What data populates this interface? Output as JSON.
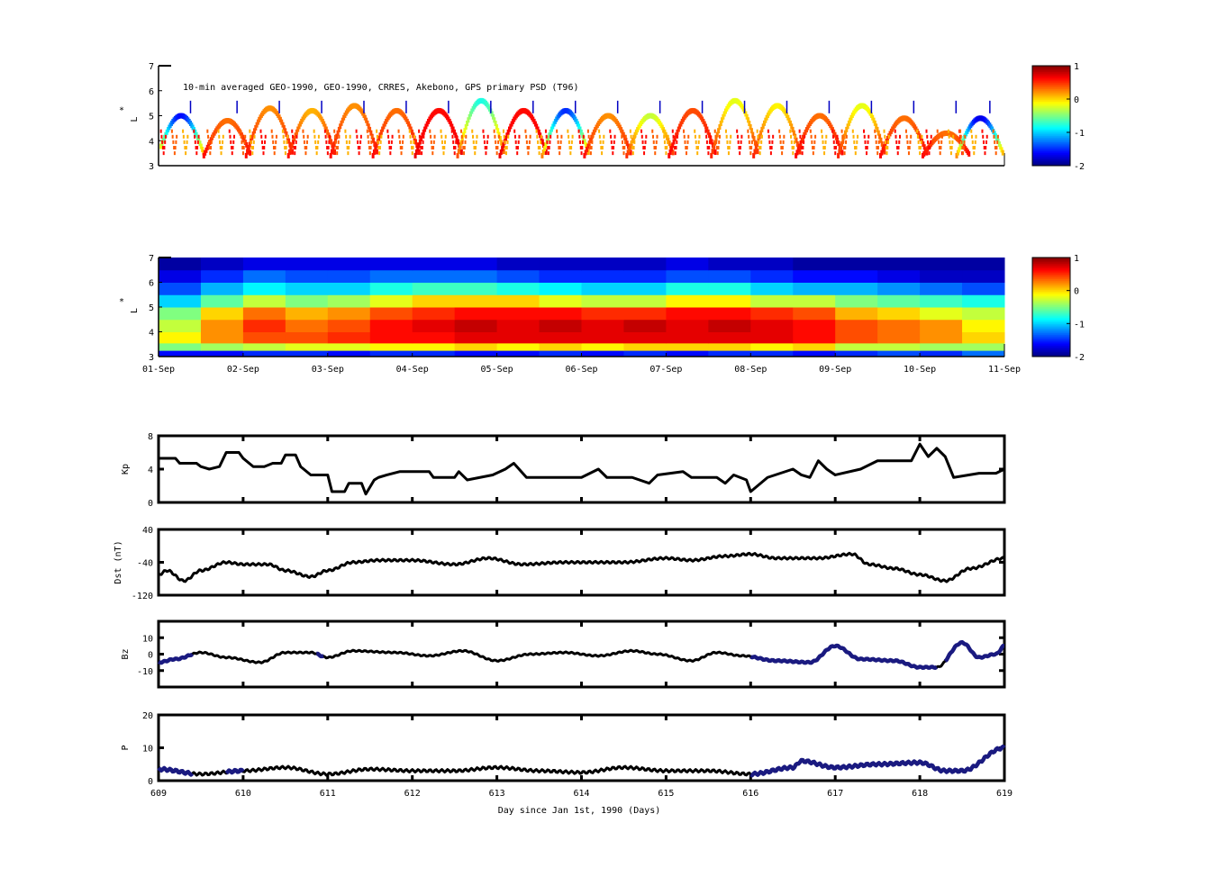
{
  "chart_data": [
    {
      "type": "scatter",
      "panel": "psd-observations",
      "annotation": "10-min averaged GEO-1990, GEO-1990, CRRES, Akebono, GPS  primary PSD (T96)",
      "ylabel": "L*",
      "ylim": [
        3,
        7
      ],
      "yticks": [
        "3",
        "4",
        "5",
        "6",
        "7"
      ],
      "xlim": [
        609,
        619
      ],
      "colorbar": {
        "range": [
          -2,
          1
        ],
        "ticks": [
          "1",
          "0",
          "-1",
          "-2"
        ],
        "colormap": "jet"
      },
      "passes": [
        {
          "day": 609.25,
          "peak_L": 5.0,
          "value": -1.6
        },
        {
          "day": 609.8,
          "peak_L": 4.8,
          "value": 0.3
        },
        {
          "day": 610.3,
          "peak_L": 5.3,
          "value": 0.2
        },
        {
          "day": 610.8,
          "peak_L": 5.2,
          "value": 0.1
        },
        {
          "day": 611.3,
          "peak_L": 5.4,
          "value": 0.2
        },
        {
          "day": 611.8,
          "peak_L": 5.2,
          "value": 0.3
        },
        {
          "day": 612.3,
          "peak_L": 5.2,
          "value": 0.6
        },
        {
          "day": 612.8,
          "peak_L": 5.6,
          "value": -0.8
        },
        {
          "day": 613.3,
          "peak_L": 5.2,
          "value": 0.6
        },
        {
          "day": 613.8,
          "peak_L": 5.2,
          "value": -1.5
        },
        {
          "day": 614.3,
          "peak_L": 5.0,
          "value": 0.2
        },
        {
          "day": 614.8,
          "peak_L": 5.0,
          "value": -0.3
        },
        {
          "day": 615.3,
          "peak_L": 5.2,
          "value": 0.4
        },
        {
          "day": 615.8,
          "peak_L": 5.6,
          "value": -0.2
        },
        {
          "day": 616.3,
          "peak_L": 5.4,
          "value": -0.1
        },
        {
          "day": 616.8,
          "peak_L": 5.0,
          "value": 0.3
        },
        {
          "day": 617.3,
          "peak_L": 5.4,
          "value": -0.2
        },
        {
          "day": 617.8,
          "peak_L": 4.9,
          "value": 0.3
        },
        {
          "day": 618.3,
          "peak_L": 4.3,
          "value": 0.3
        },
        {
          "day": 618.7,
          "peak_L": 4.9,
          "value": -1.7
        }
      ]
    },
    {
      "type": "heatmap",
      "panel": "psd-reanalysis",
      "ylabel": "L*",
      "ylim": [
        3,
        7
      ],
      "yticks": [
        "3",
        "4",
        "5",
        "6",
        "7"
      ],
      "xticklabels": [
        "01-Sep",
        "02-Sep",
        "03-Sep",
        "04-Sep",
        "05-Sep",
        "06-Sep",
        "07-Sep",
        "08-Sep",
        "09-Sep",
        "10-Sep",
        "11-Sep"
      ],
      "colorbar": {
        "range": [
          -2,
          1
        ],
        "ticks": [
          "1",
          "0",
          "-1",
          "-2"
        ],
        "colormap": "jet"
      },
      "L_bins": [
        3.1,
        3.4,
        3.75,
        4.25,
        4.75,
        5.25,
        5.75,
        6.25,
        6.75
      ],
      "time_days": [
        609.0,
        609.5,
        610.0,
        610.5,
        611.0,
        611.5,
        612.0,
        612.5,
        613.0,
        613.5,
        614.0,
        614.5,
        615.0,
        615.5,
        616.0,
        616.5,
        617.0,
        617.5,
        618.0,
        618.5
      ],
      "values": [
        [
          -1.6,
          -1.6,
          -1.5,
          -1.5,
          -1.6,
          -1.5,
          -1.5,
          -1.6,
          -1.6,
          -1.5,
          -1.6,
          -1.5,
          -1.6,
          -1.5,
          -1.5,
          -1.6,
          -1.5,
          -1.4,
          -1.5,
          -1.3
        ],
        [
          -0.5,
          -0.4,
          -0.3,
          -0.2,
          -0.2,
          -0.1,
          -0.1,
          0.0,
          -0.1,
          0.0,
          -0.1,
          0.0,
          0.0,
          0.0,
          -0.1,
          0.0,
          -0.3,
          -0.3,
          -0.4,
          -0.4
        ],
        [
          -0.1,
          0.2,
          0.4,
          0.4,
          0.5,
          0.6,
          0.6,
          0.7,
          0.7,
          0.7,
          0.7,
          0.7,
          0.7,
          0.7,
          0.7,
          0.6,
          0.4,
          0.3,
          0.2,
          0.0
        ],
        [
          -0.3,
          0.2,
          0.5,
          0.3,
          0.4,
          0.6,
          0.7,
          0.8,
          0.7,
          0.8,
          0.7,
          0.8,
          0.7,
          0.8,
          0.7,
          0.6,
          0.4,
          0.3,
          0.2,
          -0.1
        ],
        [
          -0.5,
          0.0,
          0.3,
          0.1,
          0.2,
          0.4,
          0.5,
          0.6,
          0.6,
          0.6,
          0.5,
          0.5,
          0.6,
          0.6,
          0.5,
          0.4,
          0.1,
          0.0,
          -0.2,
          -0.3
        ],
        [
          -1.0,
          -0.6,
          -0.3,
          -0.5,
          -0.4,
          -0.2,
          0.0,
          0.0,
          0.0,
          -0.2,
          -0.3,
          -0.3,
          -0.1,
          -0.1,
          -0.3,
          -0.3,
          -0.5,
          -0.6,
          -0.7,
          -0.8
        ],
        [
          -1.4,
          -1.1,
          -0.9,
          -1.0,
          -1.0,
          -0.8,
          -0.7,
          -0.7,
          -0.8,
          -0.9,
          -1.0,
          -1.0,
          -0.8,
          -0.8,
          -1.0,
          -1.1,
          -1.1,
          -1.2,
          -1.3,
          -1.4
        ],
        [
          -1.7,
          -1.5,
          -1.3,
          -1.4,
          -1.4,
          -1.3,
          -1.3,
          -1.3,
          -1.4,
          -1.5,
          -1.5,
          -1.5,
          -1.4,
          -1.4,
          -1.5,
          -1.6,
          -1.6,
          -1.7,
          -1.8,
          -1.8
        ],
        [
          -1.9,
          -1.8,
          -1.7,
          -1.7,
          -1.7,
          -1.7,
          -1.7,
          -1.7,
          -1.8,
          -1.8,
          -1.8,
          -1.8,
          -1.7,
          -1.8,
          -1.8,
          -1.9,
          -1.9,
          -1.9,
          -1.9,
          -1.9
        ]
      ]
    },
    {
      "type": "line",
      "panel": "kp",
      "ylabel": "Kp",
      "ylim": [
        0,
        8
      ],
      "yticks": [
        "0",
        "4",
        "8"
      ],
      "x": [
        609.0,
        609.2,
        609.25,
        609.45,
        609.5,
        609.6,
        609.72,
        609.8,
        609.95,
        610.0,
        610.12,
        610.25,
        610.35,
        610.45,
        610.5,
        610.62,
        610.68,
        610.8,
        611.0,
        611.05,
        611.2,
        611.25,
        611.4,
        611.45,
        611.55,
        611.6,
        611.7,
        611.85,
        612.2,
        612.25,
        612.5,
        612.55,
        612.65,
        612.8,
        612.95,
        613.1,
        613.2,
        613.35,
        613.7,
        614.0,
        614.2,
        614.3,
        614.6,
        614.8,
        614.9,
        615.2,
        615.3,
        615.6,
        615.7,
        615.8,
        615.95,
        616.0,
        616.2,
        616.5,
        616.6,
        616.7,
        616.8,
        616.9,
        617.0,
        617.3,
        617.5,
        617.9,
        618.0,
        618.1,
        618.2,
        618.3,
        618.4,
        618.7,
        618.9,
        619.0
      ],
      "y": [
        5.3,
        5.3,
        4.7,
        4.7,
        4.3,
        4.0,
        4.3,
        6.0,
        6.0,
        5.3,
        4.3,
        4.3,
        4.7,
        4.7,
        5.7,
        5.7,
        4.3,
        3.3,
        3.3,
        1.3,
        1.3,
        2.3,
        2.3,
        1.0,
        2.7,
        3.0,
        3.3,
        3.7,
        3.7,
        3.0,
        3.0,
        3.7,
        2.7,
        3.0,
        3.3,
        4.0,
        4.7,
        3.0,
        3.0,
        3.0,
        4.0,
        3.0,
        3.0,
        2.3,
        3.3,
        3.7,
        3.0,
        3.0,
        2.3,
        3.3,
        2.7,
        1.3,
        3.0,
        4.0,
        3.3,
        3.0,
        5.0,
        4.0,
        3.3,
        4.0,
        5.0,
        5.0,
        7.0,
        5.5,
        6.5,
        5.5,
        3.0,
        3.5,
        3.5,
        4.0
      ]
    },
    {
      "type": "line",
      "panel": "dst",
      "ylabel": "Dst (nT)",
      "ylim": [
        -120,
        40
      ],
      "yticks": [
        "-120",
        "-40",
        "40"
      ],
      "x": [
        609.0,
        609.1,
        609.3,
        609.5,
        609.8,
        610.0,
        610.3,
        610.5,
        610.8,
        611.0,
        611.3,
        611.6,
        612.0,
        612.5,
        612.9,
        613.3,
        613.8,
        614.5,
        615.0,
        615.3,
        615.7,
        616.0,
        616.3,
        616.8,
        617.2,
        617.4,
        617.7,
        618.0,
        618.3,
        618.6,
        619.0
      ],
      "y": [
        -70,
        -60,
        -85,
        -60,
        -40,
        -45,
        -45,
        -60,
        -75,
        -60,
        -40,
        -35,
        -35,
        -45,
        -30,
        -45,
        -40,
        -40,
        -30,
        -35,
        -25,
        -20,
        -30,
        -30,
        -20,
        -45,
        -55,
        -70,
        -85,
        -55,
        -30
      ]
    },
    {
      "type": "line",
      "panel": "bz",
      "ylabel": "Bz",
      "ylim": [
        -20,
        20
      ],
      "yticks": [
        "-10",
        "0",
        "10"
      ],
      "x": [
        609.0,
        609.2,
        609.5,
        609.8,
        610.2,
        610.5,
        610.8,
        611.0,
        611.3,
        611.8,
        612.2,
        612.6,
        613.0,
        613.4,
        613.8,
        614.2,
        614.6,
        614.9,
        615.3,
        615.6,
        615.9,
        616.3,
        616.7,
        617.0,
        617.3,
        617.7,
        618.0,
        618.2,
        618.5,
        618.7,
        618.9,
        619.0
      ],
      "y": [
        -5,
        -3,
        1,
        -2,
        -5,
        1,
        1,
        -2,
        2,
        1,
        -1,
        2,
        -4,
        0,
        1,
        -1,
        2,
        0,
        -4,
        1,
        -1,
        -4,
        -5,
        5,
        -3,
        -4,
        -8,
        -8,
        7,
        -2,
        0,
        5
      ],
      "highlight_intervals": [
        [
          609.0,
          609.4
        ],
        [
          610.85,
          610.95
        ],
        [
          616.0,
          618.2
        ],
        [
          618.3,
          619.0
        ]
      ],
      "highlight_color": "#1a1a80"
    },
    {
      "type": "line",
      "panel": "pressure",
      "ylabel": "P",
      "ylim": [
        0,
        20
      ],
      "yticks": [
        "0",
        "10",
        "20"
      ],
      "x": [
        609.0,
        609.5,
        610.0,
        610.5,
        611.0,
        611.5,
        612.0,
        612.5,
        613.0,
        613.5,
        614.0,
        614.5,
        615.0,
        615.5,
        616.0,
        616.5,
        616.6,
        617.0,
        617.5,
        618.0,
        618.3,
        618.5,
        619.0
      ],
      "y": [
        3.5,
        2,
        3,
        4,
        2,
        3.5,
        3,
        3,
        4,
        3,
        2.5,
        4,
        3,
        3,
        2,
        4,
        6,
        4,
        5,
        5.5,
        3,
        3,
        10
      ],
      "highlight_intervals": [
        [
          609.0,
          609.4
        ],
        [
          609.8,
          610.0
        ],
        [
          616.0,
          619.0
        ]
      ],
      "highlight_color": "#1a1a80",
      "xlabel": "Day since Jan 1st, 1990 (Days)",
      "xticks": [
        "609",
        "610",
        "611",
        "612",
        "613",
        "614",
        "615",
        "616",
        "617",
        "618",
        "619"
      ]
    }
  ]
}
